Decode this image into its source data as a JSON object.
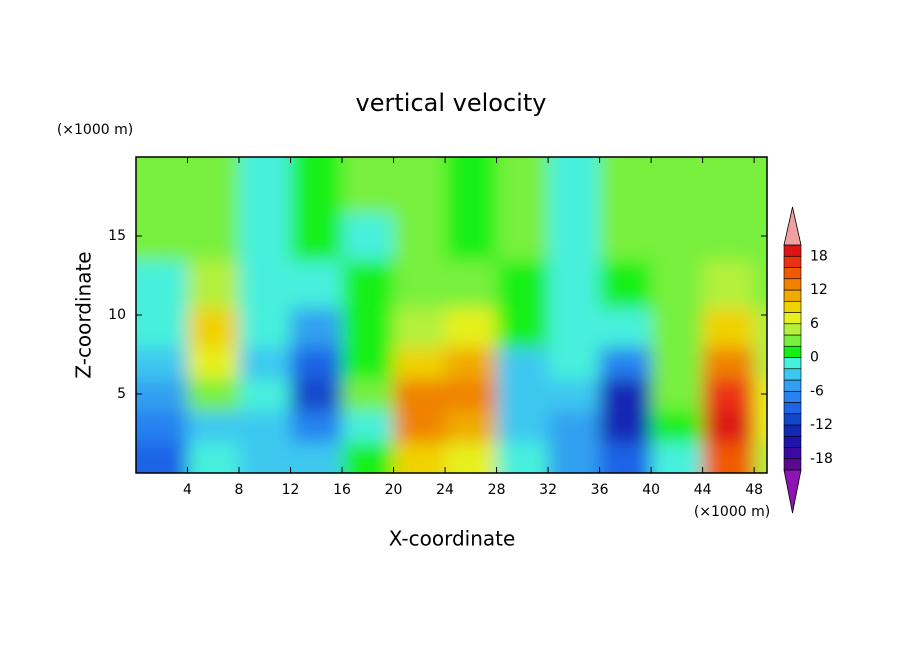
{
  "chart_data": {
    "type": "contour",
    "title": "vertical velocity",
    "x_label": "X-coordinate",
    "y_label": "Z-coordinate",
    "x_unit": "(×1000 m)",
    "y_unit": "(×1000 m)",
    "xlim": [
      0,
      49
    ],
    "ylim": [
      0,
      20
    ],
    "xticks": [
      4,
      8,
      12,
      16,
      20,
      24,
      28,
      32,
      36,
      40,
      44,
      48
    ],
    "yticks": [
      5,
      10,
      15
    ],
    "x": [
      2,
      6,
      10,
      14,
      18,
      22,
      26,
      30,
      34,
      38,
      42,
      46,
      50
    ],
    "y": [
      1,
      3,
      5,
      7,
      9,
      12,
      15,
      18
    ],
    "z": [
      [
        -10,
        -2,
        -4,
        -4,
        0,
        8,
        6,
        -2,
        -6,
        -10,
        -2,
        14,
        4
      ],
      [
        -8,
        -4,
        -4,
        -8,
        -2,
        12,
        10,
        -4,
        -6,
        -14,
        0,
        18,
        6
      ],
      [
        -6,
        2,
        -2,
        -12,
        2,
        12,
        12,
        -4,
        -4,
        -14,
        2,
        16,
        6
      ],
      [
        -4,
        6,
        -4,
        -10,
        0,
        8,
        10,
        -4,
        -2,
        -8,
        2,
        12,
        4
      ],
      [
        -2,
        8,
        -2,
        -6,
        0,
        4,
        6,
        0,
        -2,
        -2,
        2,
        8,
        4
      ],
      [
        -2,
        4,
        -2,
        -2,
        0,
        2,
        2,
        0,
        -2,
        0,
        2,
        4,
        2
      ],
      [
        2,
        2,
        -2,
        0,
        -2,
        2,
        0,
        2,
        -2,
        2,
        2,
        2,
        2
      ],
      [
        2,
        2,
        -2,
        0,
        2,
        2,
        0,
        2,
        -2,
        2,
        2,
        2,
        2
      ]
    ],
    "colorbar": {
      "levels": [
        -20,
        -18,
        -16,
        -14,
        -12,
        -10,
        -8,
        -6,
        -4,
        -2,
        0,
        2,
        4,
        6,
        8,
        10,
        12,
        14,
        16,
        18,
        20
      ],
      "colors": [
        "#5a0a8c",
        "#3c0aa0",
        "#1e14aa",
        "#1428b4",
        "#1446c8",
        "#1e64e6",
        "#2882f0",
        "#32a0f0",
        "#3cc8f0",
        "#46f0dc",
        "#14f014",
        "#78f03c",
        "#b4f03c",
        "#e6f01e",
        "#f0d200",
        "#f0aa00",
        "#f08200",
        "#f05a00",
        "#eb3214",
        "#dc1414"
      ],
      "ticks": [
        -18,
        -12,
        -6,
        0,
        6,
        12,
        18
      ],
      "under_color": "#8c14b4",
      "over_color": "#f0a0a0"
    }
  }
}
